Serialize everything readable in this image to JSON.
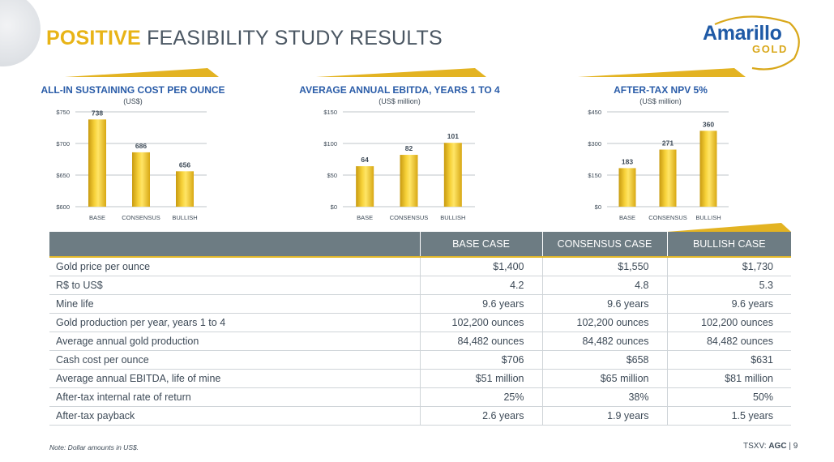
{
  "header": {
    "title_highlight": "POSITIVE",
    "title_rest": "FEASIBILITY STUDY RESULTS",
    "logo_name": "Amarillo",
    "logo_sub": "GOLD"
  },
  "colors": {
    "gold": "#e8b417",
    "blue": "#2a5ca8",
    "table_header": "#6d7c83",
    "grid": "#bfc4c9"
  },
  "chart_data": [
    {
      "type": "bar",
      "title": "ALL-IN SUSTAINING COST PER OUNCE",
      "subtitle": "(US$)",
      "categories": [
        "BASE",
        "CONSENSUS",
        "BULLISH"
      ],
      "values": [
        738,
        686,
        656
      ],
      "value_labels": [
        "738",
        "686",
        "656"
      ],
      "ylim": [
        600,
        750
      ],
      "yticks": [
        600,
        650,
        700,
        750
      ],
      "ytick_labels": [
        "$600",
        "$650",
        "$700",
        "$750"
      ],
      "xlabel": "",
      "ylabel": "",
      "grid": true
    },
    {
      "type": "bar",
      "title": "AVERAGE ANNUAL EBITDA, YEARS 1 TO 4",
      "subtitle": "(US$ million)",
      "categories": [
        "BASE",
        "CONSENSUS",
        "BULLISH"
      ],
      "values": [
        64,
        82,
        101
      ],
      "value_labels": [
        "64",
        "82",
        "101"
      ],
      "ylim": [
        0,
        150
      ],
      "yticks": [
        0,
        50,
        100,
        150
      ],
      "ytick_labels": [
        "$0",
        "$50",
        "$100",
        "$150"
      ],
      "xlabel": "",
      "ylabel": "",
      "grid": true
    },
    {
      "type": "bar",
      "title": "AFTER-TAX NPV 5%",
      "subtitle": "(US$ million)",
      "categories": [
        "BASE",
        "CONSENSUS",
        "BULLISH"
      ],
      "values": [
        183,
        271,
        360
      ],
      "value_labels": [
        "183",
        "271",
        "360"
      ],
      "ylim": [
        0,
        450
      ],
      "yticks": [
        0,
        150,
        300,
        450
      ],
      "ytick_labels": [
        "$0",
        "$150",
        "$300",
        "$450"
      ],
      "xlabel": "",
      "ylabel": "",
      "grid": true
    }
  ],
  "table": {
    "headers": [
      "",
      "BASE CASE",
      "CONSENSUS CASE",
      "BULLISH CASE"
    ],
    "rows": [
      [
        "Gold price per ounce",
        "$1,400",
        "$1,550",
        "$1,730"
      ],
      [
        "R$ to US$",
        "4.2",
        "4.8",
        "5.3"
      ],
      [
        "Mine life",
        "9.6 years",
        "9.6 years",
        "9.6 years"
      ],
      [
        "Gold production per year, years 1 to 4",
        "102,200 ounces",
        "102,200 ounces",
        "102,200 ounces"
      ],
      [
        "Average annual gold production",
        "84,482 ounces",
        "84,482 ounces",
        "84,482 ounces"
      ],
      [
        "Cash cost per ounce",
        "$706",
        "$658",
        "$631"
      ],
      [
        "Average annual EBITDA, life of mine",
        "$51 million",
        "$65 million",
        "$81 million"
      ],
      [
        "After-tax internal rate of return",
        "25%",
        "38%",
        "50%"
      ],
      [
        "After-tax payback",
        "2.6 years",
        "1.9 years",
        "1.5 years"
      ]
    ]
  },
  "footer": {
    "note": "Note: Dollar amounts in US$.",
    "exchange": "TSXV:",
    "ticker": "AGC",
    "separator": "|",
    "page": "9"
  }
}
